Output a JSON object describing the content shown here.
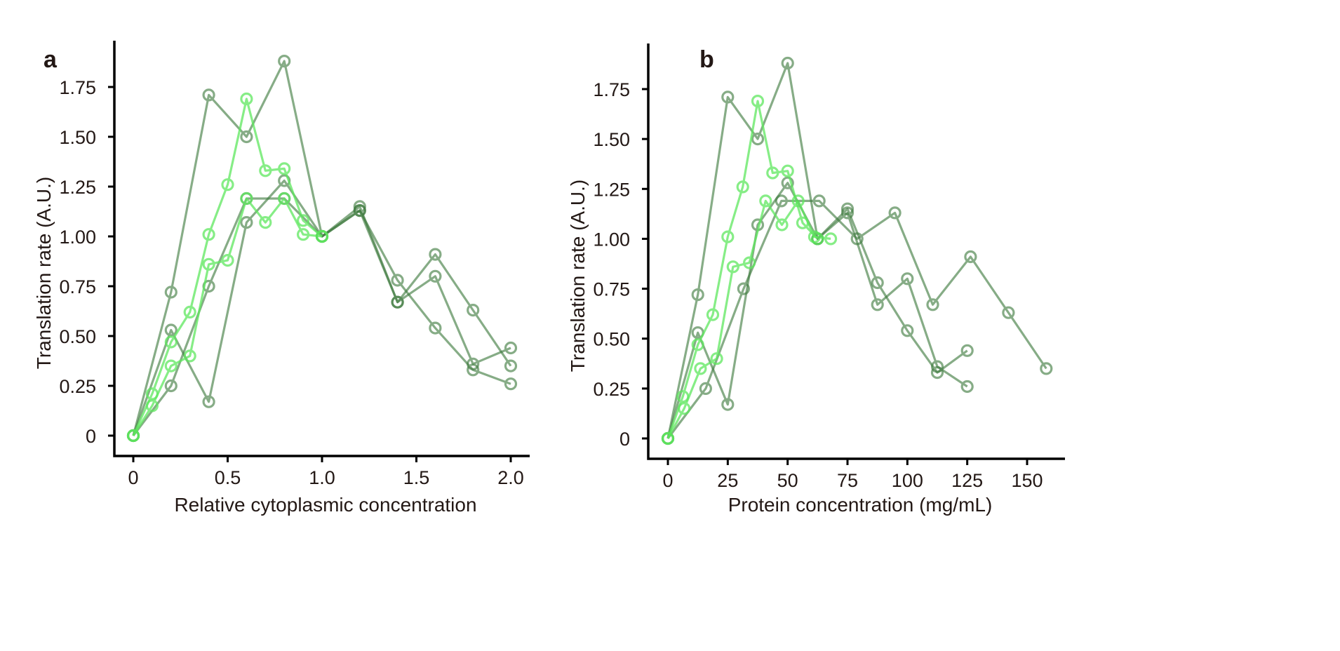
{
  "colors": {
    "dark": "#3d7a3d",
    "light": "#5ee85e",
    "axis": "#000000",
    "text": "#231815"
  },
  "chart_data": [
    {
      "type": "line",
      "panel_label": "a",
      "title": "",
      "xlabel": "Relative cytoplasmic concentration",
      "ylabel": "Translation rate (A.U.)",
      "xlim": [
        -0.1,
        2.1
      ],
      "ylim": [
        -0.1,
        1.95
      ],
      "xticks": [
        0,
        0.5,
        1.0,
        1.5,
        2.0
      ],
      "xtick_labels": [
        "0",
        "0.5",
        "1.0",
        "1.5",
        "2.0"
      ],
      "yticks": [
        0,
        0.25,
        0.5,
        0.75,
        1.0,
        1.25,
        1.5,
        1.75
      ],
      "ytick_labels": [
        "0",
        "0.25",
        "0.50",
        "0.75",
        "1.00",
        "1.25",
        "1.50",
        "1.75"
      ],
      "grid": false,
      "legend": "none",
      "marker": "open-circle",
      "series": [
        {
          "name": "dark-1",
          "tone": "dark",
          "x": [
            0,
            0.2,
            0.4,
            0.6,
            0.8,
            1.0,
            1.2,
            1.4,
            1.6,
            1.8,
            2.0
          ],
          "y": [
            0,
            0.72,
            1.71,
            1.5,
            1.88,
            1.0,
            1.13,
            0.67,
            0.91,
            0.63,
            0.35
          ]
        },
        {
          "name": "dark-2",
          "tone": "dark",
          "x": [
            0,
            0.2,
            0.4,
            0.6,
            0.8,
            1.0,
            1.2,
            1.4,
            1.6,
            1.8,
            2.0
          ],
          "y": [
            0,
            0.53,
            0.17,
            1.07,
            1.28,
            1.0,
            1.15,
            0.67,
            0.8,
            0.36,
            0.44
          ]
        },
        {
          "name": "dark-3",
          "tone": "dark",
          "x": [
            0,
            0.2,
            0.4,
            0.6,
            0.8,
            1.0,
            1.2,
            1.4,
            1.6,
            1.8,
            2.0
          ],
          "y": [
            0,
            0.25,
            0.75,
            1.19,
            1.19,
            1.0,
            1.13,
            0.78,
            0.54,
            0.33,
            0.26
          ]
        },
        {
          "name": "light-1",
          "tone": "light",
          "x": [
            0,
            0.1,
            0.2,
            0.3,
            0.4,
            0.5,
            0.6,
            0.7,
            0.8,
            0.9,
            1.0
          ],
          "y": [
            0,
            0.21,
            0.47,
            0.62,
            1.01,
            1.26,
            1.69,
            1.33,
            1.34,
            1.08,
            1.0
          ]
        },
        {
          "name": "light-2",
          "tone": "light",
          "x": [
            0,
            0.1,
            0.2,
            0.3,
            0.4,
            0.5,
            0.6,
            0.7,
            0.8,
            0.9,
            1.0
          ],
          "y": [
            0,
            0.15,
            0.35,
            0.4,
            0.86,
            0.88,
            1.19,
            1.07,
            1.19,
            1.01,
            1.0
          ]
        }
      ]
    },
    {
      "type": "line",
      "panel_label": "b",
      "title": "",
      "xlabel": "Protein concentration (mg/mL)",
      "ylabel": "Translation rate (A.U.)",
      "xlim": [
        -8,
        166
      ],
      "ylim": [
        -0.1,
        1.95
      ],
      "xticks": [
        0,
        25,
        50,
        75,
        100,
        125,
        150
      ],
      "xtick_labels": [
        "0",
        "25",
        "50",
        "75",
        "100",
        "125",
        "150"
      ],
      "yticks": [
        0,
        0.25,
        0.5,
        0.75,
        1.0,
        1.25,
        1.5,
        1.75
      ],
      "ytick_labels": [
        "0",
        "0.25",
        "0.50",
        "0.75",
        "1.00",
        "1.25",
        "1.50",
        "1.75"
      ],
      "grid": false,
      "legend": "none",
      "marker": "open-circle",
      "series": [
        {
          "name": "dark-1",
          "tone": "dark",
          "x": [
            0,
            12.5,
            25,
            37.5,
            50,
            62.5,
            75,
            87.5,
            100,
            112.5,
            125
          ],
          "y": [
            0,
            0.72,
            1.71,
            1.5,
            1.88,
            1.0,
            1.13,
            0.67,
            0.8,
            0.36,
            0.26
          ]
        },
        {
          "name": "dark-2",
          "tone": "dark",
          "x": [
            0,
            12.5,
            25,
            37.5,
            50,
            62.5,
            75,
            87.5,
            100,
            112.5,
            125
          ],
          "y": [
            0,
            0.53,
            0.17,
            1.07,
            1.28,
            1.0,
            1.15,
            0.78,
            0.54,
            0.33,
            0.44
          ]
        },
        {
          "name": "dark-3",
          "tone": "dark",
          "x": [
            0,
            15.8,
            31.6,
            47.4,
            63.2,
            79,
            94.8,
            110.6,
            126.4,
            142.2,
            158
          ],
          "y": [
            0,
            0.25,
            0.75,
            1.19,
            1.19,
            1.0,
            1.13,
            0.67,
            0.91,
            0.63,
            0.35
          ]
        },
        {
          "name": "light-1",
          "tone": "light",
          "x": [
            0,
            6.25,
            12.5,
            18.75,
            25,
            31.25,
            37.5,
            43.75,
            50,
            56.25,
            62.5
          ],
          "y": [
            0,
            0.21,
            0.47,
            0.62,
            1.01,
            1.26,
            1.69,
            1.33,
            1.34,
            1.08,
            1.0
          ]
        },
        {
          "name": "light-2",
          "tone": "light",
          "x": [
            0,
            6.8,
            13.6,
            20.4,
            27.2,
            34,
            40.8,
            47.6,
            54.4,
            61.2,
            68
          ],
          "y": [
            0,
            0.15,
            0.35,
            0.4,
            0.86,
            0.88,
            1.19,
            1.07,
            1.19,
            1.01,
            1.0
          ]
        }
      ]
    }
  ]
}
